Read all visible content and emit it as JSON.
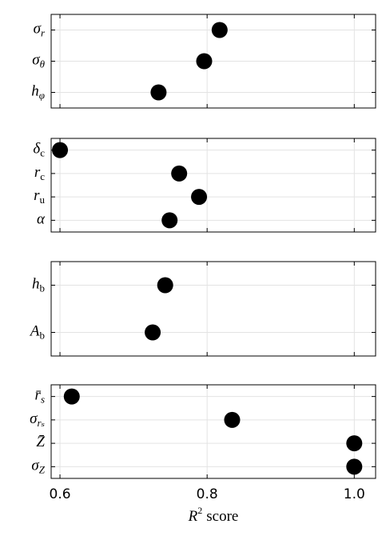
{
  "chart_data": [
    {
      "type": "dot",
      "categories": [
        "σ",
        "σ",
        "h"
      ],
      "subscripts": [
        "r",
        "θ",
        "φ"
      ],
      "values": [
        0.817,
        0.796,
        0.734
      ],
      "color": "#000000",
      "xlim": [
        0.588,
        1.029
      ],
      "xticks": [
        0.6,
        0.8,
        {
          "value": 1,
          "label": "1.0"
        }
      ],
      "grid": true
    },
    {
      "type": "dot",
      "categories": [
        "δ",
        "r",
        "r",
        "α"
      ],
      "subscripts": [
        "c",
        "c",
        "u",
        null
      ],
      "values": [
        0.6,
        0.762,
        0.789,
        0.749
      ],
      "color": "#000000",
      "xlim": [
        0.588,
        1.029
      ],
      "xticks": [
        0.6,
        0.8,
        {
          "value": 1,
          "label": "1.0"
        }
      ],
      "grid": true
    },
    {
      "type": "dot",
      "categories": [
        "h",
        "A"
      ],
      "subscripts": [
        "b",
        "b"
      ],
      "values": [
        0.743,
        0.726
      ],
      "color": "#000000",
      "xlim": [
        0.588,
        1.029
      ],
      "xticks": [
        0.6,
        0.8,
        {
          "value": 1,
          "label": "1.0"
        }
      ],
      "grid": true
    },
    {
      "type": "dot",
      "categories": [
        "r̄",
        "σ",
        "Z̄",
        "σ"
      ],
      "subscripts": [
        "s",
        "rₛ",
        null,
        "Z"
      ],
      "values": [
        0.616,
        0.834,
        1.0,
        1.0
      ],
      "color": "#000000",
      "xlim": [
        0.588,
        1.029
      ],
      "xticks": [
        0.6,
        0.8,
        {
          "value": 1,
          "label": "1.0"
        }
      ],
      "grid": true,
      "xlabel_symbol": "R",
      "xlabel_power": "2",
      "xlabel": "score"
    }
  ]
}
